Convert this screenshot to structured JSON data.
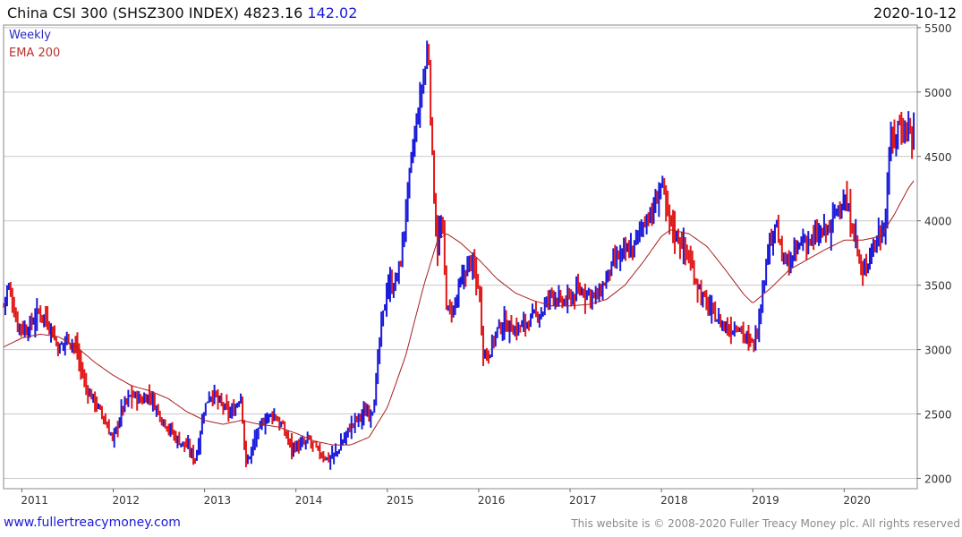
{
  "header": {
    "title": "China CSI 300 (SHSZ300 INDEX)",
    "price": "4823.16",
    "change": "142.02",
    "date": "2020-10-12"
  },
  "legend": {
    "weekly": "Weekly",
    "ema": "EMA 200"
  },
  "footer": {
    "site": "www.fullertreacymoney.com",
    "copyright": "This website is © 2008-2020 Fuller Treacy Money plc. All rights reserved"
  },
  "colors": {
    "up": "#1a1adb",
    "down": "#e01818",
    "ema": "#a82020",
    "grid": "#c8c8c8"
  },
  "chart_data": {
    "type": "line",
    "series": [
      {
        "name": "Weekly",
        "kind": "price"
      },
      {
        "name": "EMA 200",
        "kind": "moving-average"
      }
    ],
    "x_tick_labels": [
      "2011",
      "2012",
      "2013",
      "2014",
      "2015",
      "2016",
      "2017",
      "2018",
      "2019",
      "2020"
    ],
    "y_tick_labels": [
      "2000",
      "2500",
      "3000",
      "3500",
      "4000",
      "4500",
      "5000",
      "5500"
    ],
    "xlim": [
      2010.8,
      2020.8
    ],
    "ylim": [
      1920,
      5520
    ],
    "grid": true,
    "price_keypoints": [
      [
        2010.8,
        3350
      ],
      [
        2010.85,
        3500
      ],
      [
        2010.95,
        3200
      ],
      [
        2011.05,
        3150
      ],
      [
        2011.2,
        3300
      ],
      [
        2011.3,
        3200
      ],
      [
        2011.4,
        3000
      ],
      [
        2011.5,
        3100
      ],
      [
        2011.6,
        3000
      ],
      [
        2011.7,
        2700
      ],
      [
        2011.8,
        2600
      ],
      [
        2011.9,
        2450
      ],
      [
        2012.0,
        2300
      ],
      [
        2012.1,
        2550
      ],
      [
        2012.2,
        2650
      ],
      [
        2012.3,
        2600
      ],
      [
        2012.4,
        2650
      ],
      [
        2012.5,
        2500
      ],
      [
        2012.6,
        2400
      ],
      [
        2012.7,
        2300
      ],
      [
        2012.8,
        2250
      ],
      [
        2012.9,
        2150
      ],
      [
        2013.0,
        2550
      ],
      [
        2013.05,
        2650
      ],
      [
        2013.1,
        2650
      ],
      [
        2013.2,
        2550
      ],
      [
        2013.3,
        2500
      ],
      [
        2013.4,
        2650
      ],
      [
        2013.45,
        2100
      ],
      [
        2013.55,
        2300
      ],
      [
        2013.65,
        2450
      ],
      [
        2013.75,
        2500
      ],
      [
        2013.85,
        2400
      ],
      [
        2013.95,
        2250
      ],
      [
        2014.05,
        2250
      ],
      [
        2014.15,
        2300
      ],
      [
        2014.25,
        2200
      ],
      [
        2014.35,
        2150
      ],
      [
        2014.45,
        2200
      ],
      [
        2014.55,
        2350
      ],
      [
        2014.65,
        2450
      ],
      [
        2014.75,
        2500
      ],
      [
        2014.85,
        2550
      ],
      [
        2014.92,
        3100
      ],
      [
        2015.0,
        3500
      ],
      [
        2015.08,
        3500
      ],
      [
        2015.15,
        3700
      ],
      [
        2015.25,
        4400
      ],
      [
        2015.35,
        4900
      ],
      [
        2015.45,
        5350
      ],
      [
        2015.5,
        4300
      ],
      [
        2015.55,
        3800
      ],
      [
        2015.6,
        4000
      ],
      [
        2015.65,
        3300
      ],
      [
        2015.72,
        3300
      ],
      [
        2015.8,
        3500
      ],
      [
        2015.9,
        3700
      ],
      [
        2016.0,
        3500
      ],
      [
        2016.05,
        3000
      ],
      [
        2016.1,
        2950
      ],
      [
        2016.2,
        3150
      ],
      [
        2016.3,
        3200
      ],
      [
        2016.4,
        3150
      ],
      [
        2016.5,
        3200
      ],
      [
        2016.6,
        3250
      ],
      [
        2016.7,
        3300
      ],
      [
        2016.8,
        3450
      ],
      [
        2016.9,
        3350
      ],
      [
        2017.0,
        3400
      ],
      [
        2017.1,
        3450
      ],
      [
        2017.2,
        3450
      ],
      [
        2017.3,
        3400
      ],
      [
        2017.4,
        3550
      ],
      [
        2017.5,
        3700
      ],
      [
        2017.6,
        3750
      ],
      [
        2017.7,
        3800
      ],
      [
        2017.8,
        4000
      ],
      [
        2017.9,
        4050
      ],
      [
        2018.0,
        4300
      ],
      [
        2018.05,
        4100
      ],
      [
        2018.15,
        3900
      ],
      [
        2018.25,
        3800
      ],
      [
        2018.35,
        3600
      ],
      [
        2018.45,
        3400
      ],
      [
        2018.55,
        3300
      ],
      [
        2018.65,
        3200
      ],
      [
        2018.75,
        3150
      ],
      [
        2018.85,
        3200
      ],
      [
        2018.95,
        3050
      ],
      [
        2019.0,
        3050
      ],
      [
        2019.05,
        3150
      ],
      [
        2019.12,
        3550
      ],
      [
        2019.2,
        3900
      ],
      [
        2019.25,
        4000
      ],
      [
        2019.32,
        3700
      ],
      [
        2019.4,
        3650
      ],
      [
        2019.5,
        3800
      ],
      [
        2019.55,
        3850
      ],
      [
        2019.65,
        3850
      ],
      [
        2019.75,
        3900
      ],
      [
        2019.85,
        3950
      ],
      [
        2019.92,
        4100
      ],
      [
        2020.0,
        4150
      ],
      [
        2020.1,
        3950
      ],
      [
        2020.2,
        3550
      ],
      [
        2020.3,
        3800
      ],
      [
        2020.4,
        3900
      ],
      [
        2020.45,
        4000
      ],
      [
        2020.5,
        4600
      ],
      [
        2020.55,
        4650
      ],
      [
        2020.6,
        4750
      ],
      [
        2020.65,
        4700
      ],
      [
        2020.7,
        4750
      ],
      [
        2020.73,
        4650
      ],
      [
        2020.78,
        4820
      ]
    ],
    "ema_keypoints": [
      [
        2010.8,
        3020
      ],
      [
        2011.0,
        3090
      ],
      [
        2011.2,
        3120
      ],
      [
        2011.4,
        3100
      ],
      [
        2011.6,
        3020
      ],
      [
        2011.8,
        2900
      ],
      [
        2012.0,
        2800
      ],
      [
        2012.2,
        2720
      ],
      [
        2012.4,
        2680
      ],
      [
        2012.6,
        2620
      ],
      [
        2012.8,
        2520
      ],
      [
        2013.0,
        2450
      ],
      [
        2013.2,
        2420
      ],
      [
        2013.4,
        2450
      ],
      [
        2013.6,
        2420
      ],
      [
        2013.8,
        2400
      ],
      [
        2014.0,
        2350
      ],
      [
        2014.2,
        2290
      ],
      [
        2014.4,
        2260
      ],
      [
        2014.6,
        2260
      ],
      [
        2014.8,
        2320
      ],
      [
        2015.0,
        2550
      ],
      [
        2015.2,
        2950
      ],
      [
        2015.4,
        3500
      ],
      [
        2015.55,
        3850
      ],
      [
        2015.65,
        3900
      ],
      [
        2015.8,
        3830
      ],
      [
        2016.0,
        3700
      ],
      [
        2016.2,
        3550
      ],
      [
        2016.4,
        3440
      ],
      [
        2016.6,
        3380
      ],
      [
        2016.8,
        3340
      ],
      [
        2017.0,
        3340
      ],
      [
        2017.2,
        3350
      ],
      [
        2017.4,
        3390
      ],
      [
        2017.6,
        3500
      ],
      [
        2017.8,
        3680
      ],
      [
        2018.0,
        3880
      ],
      [
        2018.1,
        3930
      ],
      [
        2018.3,
        3900
      ],
      [
        2018.5,
        3800
      ],
      [
        2018.7,
        3620
      ],
      [
        2018.9,
        3430
      ],
      [
        2019.0,
        3360
      ],
      [
        2019.2,
        3480
      ],
      [
        2019.4,
        3620
      ],
      [
        2019.6,
        3700
      ],
      [
        2019.8,
        3780
      ],
      [
        2020.0,
        3850
      ],
      [
        2020.2,
        3850
      ],
      [
        2020.4,
        3880
      ],
      [
        2020.55,
        4050
      ],
      [
        2020.7,
        4250
      ],
      [
        2020.78,
        4330
      ]
    ]
  }
}
